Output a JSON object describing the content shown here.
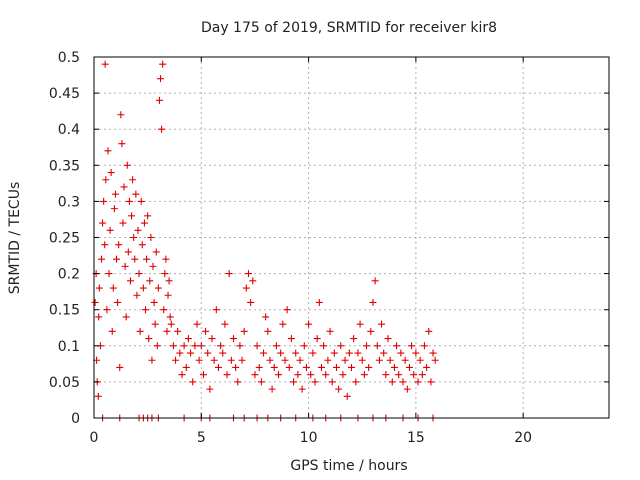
{
  "chart_data": {
    "type": "scatter",
    "title": "Day 175 of 2019, SRMTID for receiver kir8",
    "xlabel": "GPS time / hours",
    "ylabel": "SRMTID / TECUs",
    "xlim": [
      0,
      24
    ],
    "ylim": [
      0,
      0.5
    ],
    "xticks": [
      0,
      5,
      10,
      15,
      20
    ],
    "xtick_labels": [
      "0",
      "5",
      "10",
      "15",
      "20"
    ],
    "yticks": [
      0,
      0.05,
      0.1,
      0.15,
      0.2,
      0.25,
      0.3,
      0.35,
      0.4,
      0.45,
      0.5
    ],
    "ytick_labels": [
      "0",
      "0.05",
      "0.1",
      "0.15",
      "0.2",
      "0.25",
      "0.3",
      "0.35",
      "0.4",
      "0.45",
      "0.5"
    ],
    "grid": true,
    "marker": "plus",
    "color": "#e00000",
    "series": [
      {
        "points": [
          [
            0.05,
            0.16
          ],
          [
            0.1,
            0.2
          ],
          [
            0.12,
            0.08
          ],
          [
            0.15,
            0.05
          ],
          [
            0.2,
            0.03
          ],
          [
            0.22,
            0.14
          ],
          [
            0.25,
            0.18
          ],
          [
            0.3,
            0.1
          ],
          [
            0.35,
            0.22
          ],
          [
            0.4,
            0.27
          ],
          [
            0.45,
            0.3
          ],
          [
            0.5,
            0.24
          ],
          [
            0.52,
            0.49
          ],
          [
            0.55,
            0.33
          ],
          [
            0.6,
            0.15
          ],
          [
            0.65,
            0.37
          ],
          [
            0.7,
            0.2
          ],
          [
            0.75,
            0.26
          ],
          [
            0.8,
            0.34
          ],
          [
            0.85,
            0.12
          ],
          [
            0.9,
            0.18
          ],
          [
            0.95,
            0.29
          ],
          [
            1.0,
            0.31
          ],
          [
            1.05,
            0.22
          ],
          [
            1.1,
            0.16
          ],
          [
            1.15,
            0.24
          ],
          [
            1.2,
            0.07
          ],
          [
            1.25,
            0.42
          ],
          [
            1.3,
            0.38
          ],
          [
            1.35,
            0.27
          ],
          [
            1.4,
            0.32
          ],
          [
            1.45,
            0.21
          ],
          [
            1.5,
            0.14
          ],
          [
            1.55,
            0.35
          ],
          [
            1.6,
            0.23
          ],
          [
            1.65,
            0.3
          ],
          [
            1.7,
            0.19
          ],
          [
            1.75,
            0.28
          ],
          [
            1.8,
            0.33
          ],
          [
            1.85,
            0.25
          ],
          [
            1.9,
            0.22
          ],
          [
            1.95,
            0.31
          ],
          [
            2.0,
            0.17
          ],
          [
            2.05,
            0.26
          ],
          [
            2.1,
            0.2
          ],
          [
            2.15,
            0.12
          ],
          [
            2.2,
            0.3
          ],
          [
            2.25,
            0.24
          ],
          [
            2.3,
            0.18
          ],
          [
            2.35,
            0.27
          ],
          [
            2.4,
            0.15
          ],
          [
            2.45,
            0.22
          ],
          [
            2.5,
            0.28
          ],
          [
            2.55,
            0.11
          ],
          [
            2.6,
            0.19
          ],
          [
            2.65,
            0.25
          ],
          [
            2.7,
            0.08
          ],
          [
            2.75,
            0.21
          ],
          [
            2.8,
            0.16
          ],
          [
            2.85,
            0.13
          ],
          [
            2.9,
            0.23
          ],
          [
            2.95,
            0.1
          ],
          [
            3.0,
            0.18
          ],
          [
            3.05,
            0.44
          ],
          [
            3.1,
            0.47
          ],
          [
            3.15,
            0.4
          ],
          [
            3.2,
            0.49
          ],
          [
            3.25,
            0.15
          ],
          [
            3.3,
            0.2
          ],
          [
            3.35,
            0.22
          ],
          [
            3.4,
            0.12
          ],
          [
            3.45,
            0.17
          ],
          [
            3.5,
            0.19
          ],
          [
            3.55,
            0.14
          ],
          [
            3.6,
            0.13
          ],
          [
            3.7,
            0.1
          ],
          [
            3.8,
            0.08
          ],
          [
            3.9,
            0.12
          ],
          [
            4.0,
            0.09
          ],
          [
            4.1,
            0.06
          ],
          [
            4.2,
            0.1
          ],
          [
            4.3,
            0.07
          ],
          [
            4.4,
            0.11
          ],
          [
            4.5,
            0.09
          ],
          [
            4.6,
            0.05
          ],
          [
            4.7,
            0.1
          ],
          [
            4.8,
            0.13
          ],
          [
            4.9,
            0.08
          ],
          [
            5.0,
            0.1
          ],
          [
            5.1,
            0.06
          ],
          [
            5.2,
            0.12
          ],
          [
            5.3,
            0.09
          ],
          [
            5.4,
            0.04
          ],
          [
            5.5,
            0.11
          ],
          [
            5.6,
            0.08
          ],
          [
            5.7,
            0.15
          ],
          [
            5.8,
            0.07
          ],
          [
            5.9,
            0.1
          ],
          [
            6.0,
            0.09
          ],
          [
            6.1,
            0.13
          ],
          [
            6.2,
            0.06
          ],
          [
            6.3,
            0.2
          ],
          [
            6.4,
            0.08
          ],
          [
            6.5,
            0.11
          ],
          [
            6.6,
            0.07
          ],
          [
            6.7,
            0.05
          ],
          [
            6.8,
            0.1
          ],
          [
            6.9,
            0.08
          ],
          [
            7.0,
            0.12
          ],
          [
            7.1,
            0.18
          ],
          [
            7.2,
            0.2
          ],
          [
            7.3,
            0.16
          ],
          [
            7.4,
            0.19
          ],
          [
            7.5,
            0.06
          ],
          [
            7.6,
            0.1
          ],
          [
            7.7,
            0.07
          ],
          [
            7.8,
            0.05
          ],
          [
            7.9,
            0.09
          ],
          [
            8.0,
            0.14
          ],
          [
            8.1,
            0.12
          ],
          [
            8.2,
            0.08
          ],
          [
            8.3,
            0.04
          ],
          [
            8.4,
            0.07
          ],
          [
            8.5,
            0.1
          ],
          [
            8.6,
            0.06
          ],
          [
            8.7,
            0.09
          ],
          [
            8.8,
            0.13
          ],
          [
            8.9,
            0.08
          ],
          [
            9.0,
            0.15
          ],
          [
            9.1,
            0.07
          ],
          [
            9.2,
            0.11
          ],
          [
            9.3,
            0.05
          ],
          [
            9.4,
            0.09
          ],
          [
            9.5,
            0.06
          ],
          [
            9.6,
            0.08
          ],
          [
            9.7,
            0.04
          ],
          [
            9.8,
            0.1
          ],
          [
            9.9,
            0.07
          ],
          [
            10.0,
            0.13
          ],
          [
            10.1,
            0.06
          ],
          [
            10.2,
            0.09
          ],
          [
            10.3,
            0.05
          ],
          [
            10.4,
            0.11
          ],
          [
            10.5,
            0.16
          ],
          [
            10.6,
            0.07
          ],
          [
            10.7,
            0.1
          ],
          [
            10.8,
            0.06
          ],
          [
            10.9,
            0.08
          ],
          [
            11.0,
            0.12
          ],
          [
            11.1,
            0.05
          ],
          [
            11.2,
            0.09
          ],
          [
            11.3,
            0.07
          ],
          [
            11.4,
            0.04
          ],
          [
            11.5,
            0.1
          ],
          [
            11.6,
            0.06
          ],
          [
            11.7,
            0.08
          ],
          [
            11.8,
            0.03
          ],
          [
            11.9,
            0.09
          ],
          [
            12.0,
            0.07
          ],
          [
            12.1,
            0.11
          ],
          [
            12.2,
            0.05
          ],
          [
            12.3,
            0.09
          ],
          [
            12.4,
            0.13
          ],
          [
            12.5,
            0.08
          ],
          [
            12.6,
            0.06
          ],
          [
            12.7,
            0.1
          ],
          [
            12.8,
            0.07
          ],
          [
            12.9,
            0.12
          ],
          [
            13.0,
            0.16
          ],
          [
            13.1,
            0.19
          ],
          [
            13.2,
            0.1
          ],
          [
            13.3,
            0.08
          ],
          [
            13.4,
            0.13
          ],
          [
            13.5,
            0.09
          ],
          [
            13.6,
            0.06
          ],
          [
            13.7,
            0.11
          ],
          [
            13.8,
            0.08
          ],
          [
            13.9,
            0.05
          ],
          [
            14.0,
            0.07
          ],
          [
            14.1,
            0.1
          ],
          [
            14.2,
            0.06
          ],
          [
            14.3,
            0.09
          ],
          [
            14.4,
            0.05
          ],
          [
            14.5,
            0.08
          ],
          [
            14.6,
            0.04
          ],
          [
            14.7,
            0.07
          ],
          [
            14.8,
            0.1
          ],
          [
            14.9,
            0.06
          ],
          [
            15.0,
            0.09
          ],
          [
            15.1,
            0.05
          ],
          [
            15.2,
            0.08
          ],
          [
            15.3,
            0.06
          ],
          [
            15.4,
            0.1
          ],
          [
            15.5,
            0.07
          ],
          [
            15.6,
            0.12
          ],
          [
            15.7,
            0.05
          ],
          [
            15.8,
            0.09
          ],
          [
            15.9,
            0.08
          ],
          [
            0.4,
            0
          ],
          [
            1.2,
            0
          ],
          [
            2.1,
            0
          ],
          [
            2.3,
            0
          ],
          [
            2.5,
            0
          ],
          [
            2.7,
            0
          ],
          [
            3.0,
            0
          ],
          [
            4.2,
            0
          ],
          [
            5.0,
            0
          ],
          [
            5.4,
            0
          ],
          [
            6.5,
            0
          ],
          [
            7.0,
            0
          ],
          [
            7.6,
            0
          ],
          [
            8.1,
            0
          ],
          [
            8.7,
            0
          ],
          [
            9.4,
            0
          ],
          [
            10.2,
            0
          ],
          [
            10.8,
            0
          ],
          [
            11.5,
            0
          ],
          [
            12.3,
            0
          ],
          [
            13.0,
            0
          ],
          [
            13.6,
            0
          ],
          [
            14.4,
            0
          ],
          [
            15.1,
            0
          ],
          [
            15.8,
            0
          ]
        ]
      }
    ]
  }
}
